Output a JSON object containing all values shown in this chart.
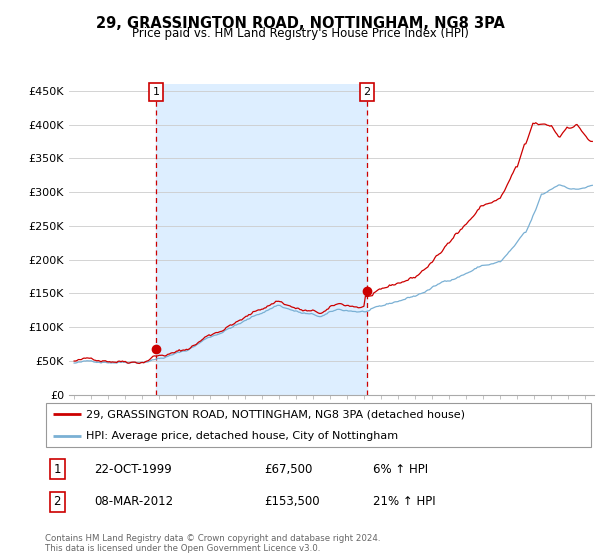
{
  "title": "29, GRASSINGTON ROAD, NOTTINGHAM, NG8 3PA",
  "subtitle": "Price paid vs. HM Land Registry's House Price Index (HPI)",
  "legend_line1": "29, GRASSINGTON ROAD, NOTTINGHAM, NG8 3PA (detached house)",
  "legend_line2": "HPI: Average price, detached house, City of Nottingham",
  "footnote": "Contains HM Land Registry data © Crown copyright and database right 2024.\nThis data is licensed under the Open Government Licence v3.0.",
  "transaction1_date": "22-OCT-1999",
  "transaction1_price": "£67,500",
  "transaction1_hpi": "6% ↑ HPI",
  "transaction2_date": "08-MAR-2012",
  "transaction2_price": "£153,500",
  "transaction2_hpi": "21% ↑ HPI",
  "property_color": "#cc0000",
  "hpi_color": "#7ab0d4",
  "shade_color": "#ddeeff",
  "ylim_min": 0,
  "ylim_max": 460000,
  "yticks": [
    0,
    50000,
    100000,
    150000,
    200000,
    250000,
    300000,
    350000,
    400000,
    450000
  ],
  "ytick_labels": [
    "£0",
    "£50K",
    "£100K",
    "£150K",
    "£200K",
    "£250K",
    "£300K",
    "£350K",
    "£400K",
    "£450K"
  ],
  "marker1_x": 1999.8,
  "marker1_y": 67500,
  "marker2_x": 2012.18,
  "marker2_y": 153500,
  "xlim_min": 1994.7,
  "xlim_max": 2025.5
}
